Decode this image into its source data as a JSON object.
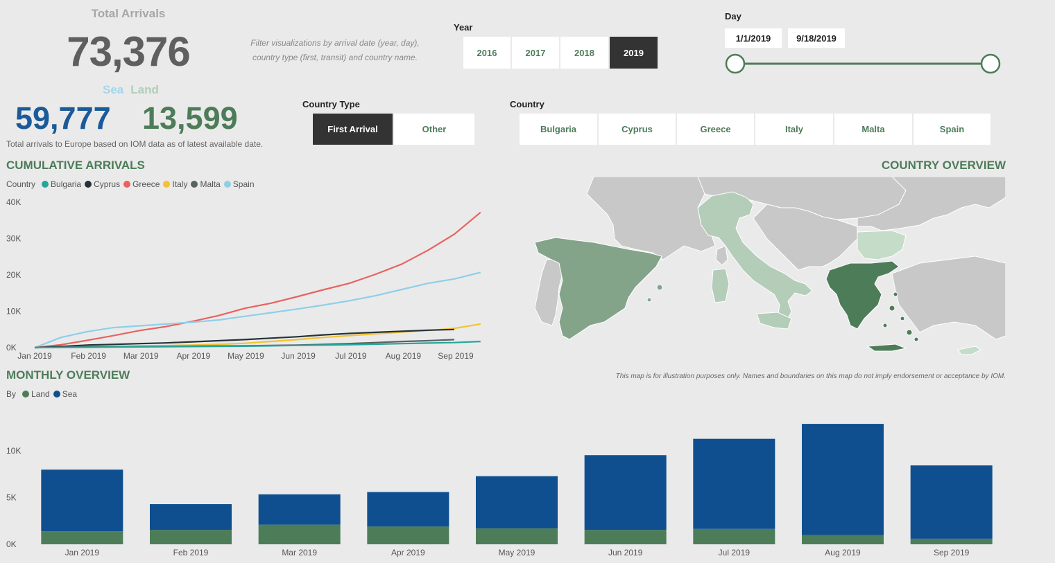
{
  "kpis": {
    "total_title": "Total Arrivals",
    "total_value": "73,376",
    "sea_label": "Sea",
    "land_label": "Land",
    "sea_value": "59,777",
    "land_value": "13,599",
    "note": "Total arrivals to Europe based on IOM data as of latest available date."
  },
  "filter_hint_line1": "Filter visualizations by arrival date (year, day),",
  "filter_hint_line2": "country type (first, transit) and country name.",
  "year_slicer": {
    "label": "Year",
    "options": [
      "2016",
      "2017",
      "2018",
      "2019"
    ],
    "selected": "2019"
  },
  "day_slicer": {
    "label": "Day",
    "start": "1/1/2019",
    "end": "9/18/2019",
    "track_color": "#4d7c58"
  },
  "country_type_slicer": {
    "label": "Country Type",
    "options": [
      "First Arrival",
      "Other"
    ],
    "selected": "First Arrival"
  },
  "country_slicer": {
    "label": "Country",
    "options": [
      "Bulgaria",
      "Cyprus",
      "Greece",
      "Italy",
      "Malta",
      "Spain"
    ]
  },
  "cumulative": {
    "title": "CUMULATIVE ARRIVALS",
    "legend_title": "Country",
    "legend": [
      {
        "name": "Bulgaria",
        "color": "#26a69a"
      },
      {
        "name": "Cyprus",
        "color": "#263238"
      },
      {
        "name": "Greece",
        "color": "#e8625f"
      },
      {
        "name": "Italy",
        "color": "#f2c232"
      },
      {
        "name": "Malta",
        "color": "#5a6262"
      },
      {
        "name": "Spain",
        "color": "#8ecfe8"
      }
    ]
  },
  "country_overview": {
    "title": "COUNTRY OVERVIEW",
    "note": "This map is for illustration purposes only. Names and boundaries on this map do not imply endorsement or acceptance by IOM.",
    "colors": {
      "greece": "#4d7c58",
      "spain": "#84a48a",
      "italy": "#b3cdb8",
      "bulgaria": "#c5dcc8",
      "cyprus": "#c5dcc8",
      "other": "#c8c8c8",
      "sea": "#eaeaea"
    }
  },
  "monthly": {
    "title": "MONTHLY OVERVIEW",
    "legend_title": "By",
    "legend": [
      {
        "name": "Land",
        "color": "#4d7c58"
      },
      {
        "name": "Sea",
        "color": "#0f4f8f"
      }
    ]
  },
  "chart_data": [
    {
      "type": "line",
      "title": "CUMULATIVE ARRIVALS",
      "xlabel": "",
      "ylabel": "",
      "x_ticks": [
        "Jan 2019",
        "Feb 2019",
        "Mar 2019",
        "Apr 2019",
        "May 2019",
        "Jun 2019",
        "Jul 2019",
        "Aug 2019",
        "Sep 2019"
      ],
      "y_ticks": [
        "0K",
        "10K",
        "20K",
        "30K",
        "40K"
      ],
      "ylim": [
        0,
        40000
      ],
      "x_unit": "month",
      "x": [
        0,
        0.5,
        1,
        1.5,
        2,
        2.5,
        3,
        3.5,
        4,
        4.5,
        5,
        5.5,
        6,
        6.5,
        7,
        7.5,
        8,
        8.5
      ],
      "series": [
        {
          "name": "Greece",
          "color": "#e8625f",
          "values": [
            0,
            800,
            2000,
            3300,
            4700,
            5800,
            7200,
            8800,
            10800,
            12200,
            14000,
            15900,
            17700,
            20200,
            23000,
            26800,
            31200,
            37200
          ]
        },
        {
          "name": "Spain",
          "color": "#8ecfe8",
          "values": [
            0,
            2800,
            4400,
            5500,
            6000,
            6500,
            7000,
            7600,
            8600,
            9600,
            10600,
            11700,
            12900,
            14300,
            16000,
            17700,
            18900,
            20700
          ]
        },
        {
          "name": "Italy",
          "color": "#f2c232",
          "values": [
            0,
            100,
            250,
            350,
            450,
            550,
            700,
            900,
            1200,
            1700,
            2200,
            2800,
            3300,
            3800,
            4300,
            4700,
            5300,
            6500
          ]
        },
        {
          "name": "Cyprus",
          "color": "#263238",
          "values": [
            0,
            300,
            700,
            900,
            1100,
            1300,
            1600,
            1900,
            2200,
            2600,
            3000,
            3500,
            3900,
            4200,
            4500,
            4800,
            5000,
            null
          ]
        },
        {
          "name": "Malta",
          "color": "#5a6262",
          "values": [
            0,
            100,
            200,
            250,
            300,
            350,
            400,
            450,
            500,
            600,
            700,
            900,
            1100,
            1400,
            1700,
            1900,
            2200,
            null
          ]
        },
        {
          "name": "Bulgaria",
          "color": "#26a69a",
          "values": [
            0,
            50,
            100,
            150,
            200,
            250,
            300,
            350,
            400,
            500,
            600,
            700,
            800,
            950,
            1100,
            1250,
            1400,
            1700
          ]
        }
      ]
    },
    {
      "type": "bar",
      "stacked": true,
      "title": "MONTHLY OVERVIEW",
      "xlabel": "",
      "ylabel": "",
      "categories": [
        "Jan 2019",
        "Feb 2019",
        "Mar 2019",
        "Apr 2019",
        "May 2019",
        "Jun 2019",
        "Jul 2019",
        "Aug 2019",
        "Sep 2019"
      ],
      "y_ticks": [
        "0K",
        "5K",
        "10K"
      ],
      "ylim": [
        0,
        13500
      ],
      "series": [
        {
          "name": "Land",
          "color": "#4d7c58",
          "values": [
            1400,
            1550,
            2100,
            1900,
            1700,
            1550,
            1650,
            1000,
            600
          ]
        },
        {
          "name": "Sea",
          "color": "#0f4f8f",
          "values": [
            6600,
            2750,
            3250,
            3700,
            5600,
            8000,
            9650,
            11900,
            7850
          ]
        }
      ]
    }
  ]
}
